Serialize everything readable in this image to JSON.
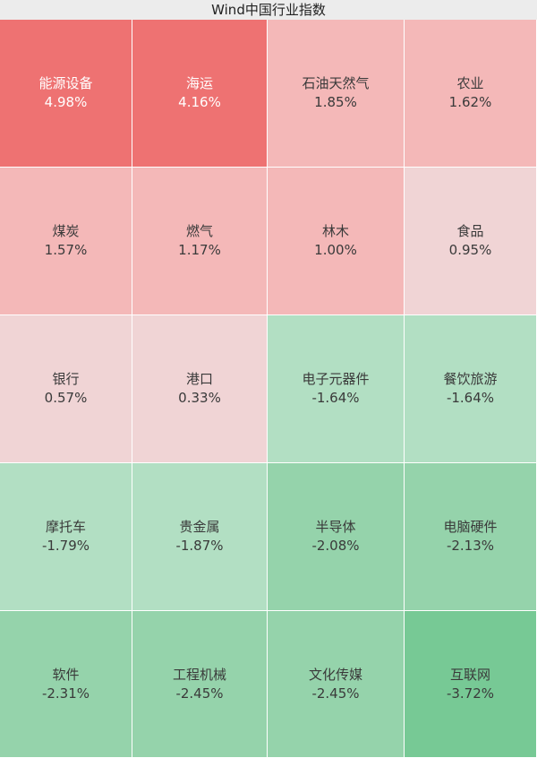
{
  "chart_data": {
    "type": "heatmap",
    "title": "Wind中国行业指数",
    "cells": [
      {
        "name": "能源设备",
        "value": "4.98%",
        "color": "#ee7272"
      },
      {
        "name": "海运",
        "value": "4.16%",
        "color": "#ee7272"
      },
      {
        "name": "石油天然气",
        "value": "1.85%",
        "color": "#f4b8b8"
      },
      {
        "name": "农业",
        "value": "1.62%",
        "color": "#f4b8b8"
      },
      {
        "name": "煤炭",
        "value": "1.57%",
        "color": "#f4b8b8"
      },
      {
        "name": "燃气",
        "value": "1.17%",
        "color": "#f4b8b8"
      },
      {
        "name": "林木",
        "value": "1.00%",
        "color": "#f4b8b8"
      },
      {
        "name": "食品",
        "value": "0.95%",
        "color": "#f0d4d5"
      },
      {
        "name": "银行",
        "value": "0.57%",
        "color": "#f0d4d5"
      },
      {
        "name": "港口",
        "value": "0.33%",
        "color": "#f0d4d5"
      },
      {
        "name": "电子元器件",
        "value": "-1.64%",
        "color": "#b2dfc3"
      },
      {
        "name": "餐饮旅游",
        "value": "-1.64%",
        "color": "#b2dfc3"
      },
      {
        "name": "摩托车",
        "value": "-1.79%",
        "color": "#b2dfc3"
      },
      {
        "name": "贵金属",
        "value": "-1.87%",
        "color": "#b2dfc3"
      },
      {
        "name": "半导体",
        "value": "-2.08%",
        "color": "#95d3ab"
      },
      {
        "name": "电脑硬件",
        "value": "-2.13%",
        "color": "#95d3ab"
      },
      {
        "name": "软件",
        "value": "-2.31%",
        "color": "#95d3ab"
      },
      {
        "name": "工程机械",
        "value": "-2.45%",
        "color": "#95d3ab"
      },
      {
        "name": "文化传媒",
        "value": "-2.45%",
        "color": "#95d3ab"
      },
      {
        "name": "互联网",
        "value": "-3.72%",
        "color": "#77c995"
      }
    ]
  }
}
